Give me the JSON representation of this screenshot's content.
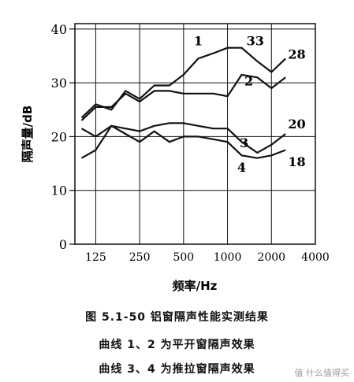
{
  "chart_data": {
    "type": "line",
    "title": "",
    "xlabel": "频率/Hz",
    "ylabel": "隔声量/dB",
    "x_scale": "log",
    "x_ticks": [
      125,
      250,
      500,
      1000,
      2000,
      4000
    ],
    "x_tick_labels": [
      "125",
      "250",
      "500",
      "1000",
      "2000",
      "4000"
    ],
    "xlim": [
      90,
      4000
    ],
    "y_ticks": [
      0,
      10,
      20,
      30,
      40
    ],
    "y_tick_labels": [
      "0",
      "10",
      "20",
      "30",
      "40"
    ],
    "ylim": [
      0,
      41
    ],
    "grid": true,
    "series": [
      {
        "name": "1",
        "end_label": "28",
        "x": [
          100,
          125,
          160,
          200,
          250,
          315,
          400,
          500,
          630,
          800,
          1000,
          1250,
          1600,
          2000,
          2500
        ],
        "values": [
          23.5,
          26,
          25,
          28.5,
          27,
          29.5,
          29.5,
          31.5,
          34.5,
          35.5,
          36.5,
          36.5,
          34,
          32,
          34.5
        ]
      },
      {
        "name": "2",
        "end_label": "33",
        "x": [
          100,
          125,
          160,
          200,
          250,
          315,
          400,
          500,
          630,
          800,
          1000,
          1250,
          1600,
          2000,
          2500
        ],
        "values": [
          23,
          25.5,
          25.5,
          28,
          26.5,
          28.5,
          28.5,
          28,
          28,
          28,
          27.5,
          31.5,
          31,
          29,
          31
        ]
      },
      {
        "name": "3",
        "end_label": "20",
        "x": [
          100,
          125,
          160,
          200,
          250,
          315,
          400,
          500,
          630,
          800,
          1000,
          1250,
          1600,
          2000,
          2500
        ],
        "values": [
          16,
          17.5,
          22,
          21.5,
          21,
          22,
          22.5,
          22.5,
          22,
          21.5,
          21.5,
          19,
          17,
          18.5,
          20.5
        ]
      },
      {
        "name": "4",
        "end_label": "18",
        "x": [
          100,
          125,
          160,
          200,
          250,
          315,
          400,
          500,
          630,
          800,
          1000,
          1250,
          1600,
          2000,
          2500
        ],
        "values": [
          21.5,
          20,
          22,
          20.5,
          19,
          21,
          19,
          20,
          20,
          19.5,
          19,
          16.5,
          16,
          16.5,
          17.5
        ]
      }
    ]
  },
  "caption": {
    "main": "图 5.1-50   铝窗隔声性能实测结果",
    "note_1": "曲线 1、2 为平开窗隔声效果",
    "note_2": "曲线 3、4 为推拉窗隔声效果"
  },
  "watermark": "值 什么值得买"
}
